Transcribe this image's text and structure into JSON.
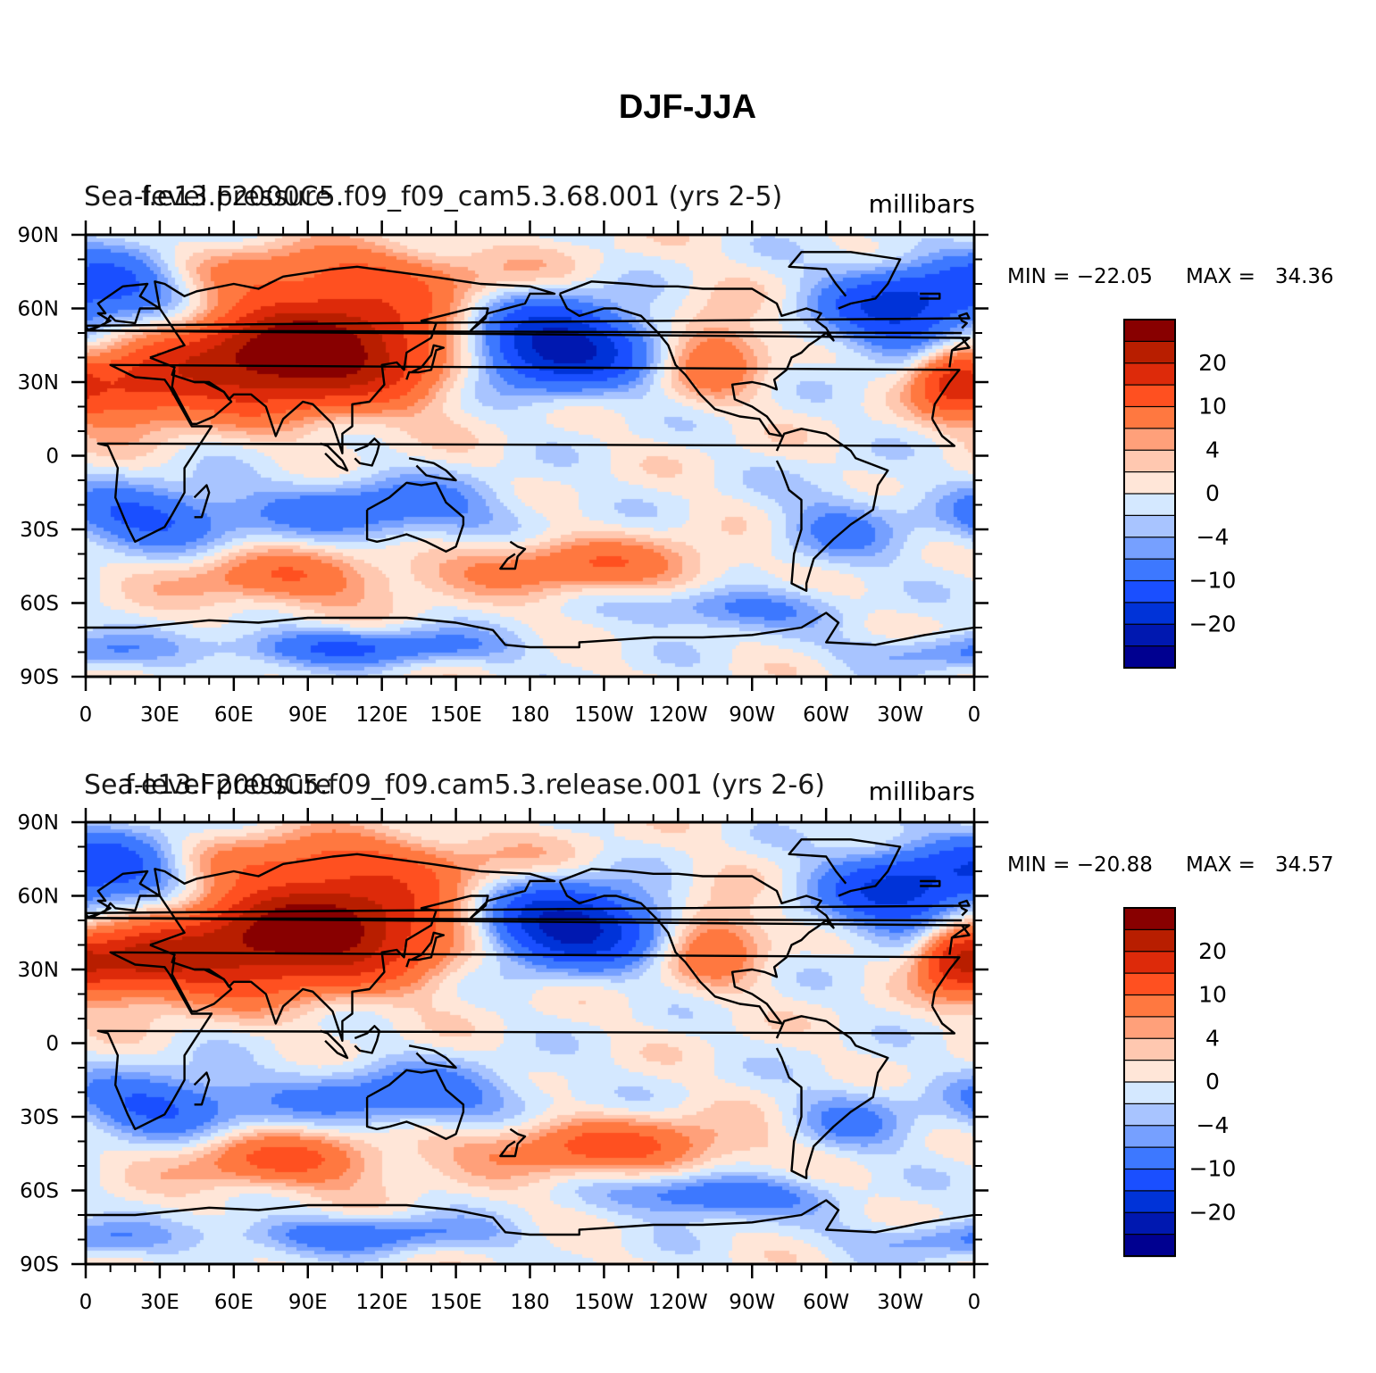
{
  "figure_title": "DJF-JJA",
  "chart_data": [
    {
      "type": "heatmap",
      "title": "f.e13.F2000C5.f09_f09_cam5.3.68.001 (yrs 2-5)",
      "variable_label": "Sea-level pressure",
      "units": "millibars",
      "xlim": [
        0,
        360
      ],
      "ylim": [
        -90,
        90
      ],
      "x_ticks": [
        "0",
        "30E",
        "60E",
        "90E",
        "120E",
        "150E",
        "180",
        "150W",
        "120W",
        "90W",
        "60W",
        "30W",
        "0"
      ],
      "y_ticks": [
        "90N",
        "60N",
        "30N",
        "0",
        "30S",
        "60S",
        "90S"
      ],
      "min_label": "MIN = −22.05",
      "max_label": "MAX =   34.36",
      "min": -22.05,
      "max": 34.36,
      "colorbar_labels": [
        "20",
        "10",
        "4",
        "0",
        "−4",
        "−10",
        "−20"
      ],
      "colorbar_levels": [
        -25,
        -20,
        -15,
        -10,
        -6,
        -4,
        -2,
        0,
        2,
        4,
        6,
        10,
        15,
        20,
        25
      ],
      "features": [
        {
          "lon": 100,
          "lat": 45,
          "amp": 26,
          "slon": 35,
          "slat": 16
        },
        {
          "lon": 60,
          "lat": 35,
          "amp": 14,
          "slon": 30,
          "slat": 12
        },
        {
          "lon": 15,
          "lat": 25,
          "amp": 12,
          "slon": 18,
          "slat": 10
        },
        {
          "lon": 350,
          "lat": 32,
          "amp": 14,
          "slon": 10,
          "slat": 9
        },
        {
          "lon": 255,
          "lat": 42,
          "amp": 10,
          "slon": 14,
          "slat": 12
        },
        {
          "lon": 100,
          "lat": 75,
          "amp": 7,
          "slon": 55,
          "slat": 8
        },
        {
          "lon": 190,
          "lat": 45,
          "amp": -24,
          "slon": 25,
          "slat": 12
        },
        {
          "lon": 330,
          "lat": 60,
          "amp": -16,
          "slon": 22,
          "slat": 12
        },
        {
          "lon": 15,
          "lat": 70,
          "amp": -12,
          "slon": 22,
          "slat": 10
        },
        {
          "lon": 25,
          "lat": -25,
          "amp": -11,
          "slon": 25,
          "slat": 9
        },
        {
          "lon": 120,
          "lat": -22,
          "amp": -9,
          "slon": 35,
          "slat": 9
        },
        {
          "lon": 305,
          "lat": -30,
          "amp": -6,
          "slon": 18,
          "slat": 12
        },
        {
          "lon": 80,
          "lat": -50,
          "amp": 9,
          "slon": 30,
          "slat": 8
        },
        {
          "lon": 200,
          "lat": -45,
          "amp": 9,
          "slon": 40,
          "slat": 8
        },
        {
          "lon": 260,
          "lat": -62,
          "amp": -8,
          "slon": 25,
          "slat": 6
        },
        {
          "lon": 110,
          "lat": -78,
          "amp": -10,
          "slon": 40,
          "slat": 5
        },
        {
          "lon": 350,
          "lat": -80,
          "amp": -6,
          "slon": 30,
          "slat": 5
        }
      ]
    },
    {
      "type": "heatmap",
      "title": "f.e13.F2000C5.f09_f09.cam5.3.release.001 (yrs 2-6)",
      "variable_label": "Sea-level pressure",
      "units": "millibars",
      "xlim": [
        0,
        360
      ],
      "ylim": [
        -90,
        90
      ],
      "x_ticks": [
        "0",
        "30E",
        "60E",
        "90E",
        "120E",
        "150E",
        "180",
        "150W",
        "120W",
        "90W",
        "60W",
        "30W",
        "0"
      ],
      "y_ticks": [
        "90N",
        "60N",
        "30N",
        "0",
        "30S",
        "60S",
        "90S"
      ],
      "min_label": "MIN = −20.88",
      "max_label": "MAX =   34.57",
      "min": -20.88,
      "max": 34.57,
      "colorbar_labels": [
        "20",
        "10",
        "4",
        "0",
        "−4",
        "−10",
        "−20"
      ],
      "colorbar_levels": [
        -25,
        -20,
        -15,
        -10,
        -6,
        -4,
        -2,
        0,
        2,
        4,
        6,
        10,
        15,
        20,
        25
      ],
      "features": [
        {
          "lon": 100,
          "lat": 48,
          "amp": 27,
          "slon": 35,
          "slat": 15
        },
        {
          "lon": 55,
          "lat": 35,
          "amp": 14,
          "slon": 30,
          "slat": 12
        },
        {
          "lon": 15,
          "lat": 32,
          "amp": 14,
          "slon": 18,
          "slat": 10
        },
        {
          "lon": 352,
          "lat": 35,
          "amp": 15,
          "slon": 10,
          "slat": 9
        },
        {
          "lon": 255,
          "lat": 42,
          "amp": 10,
          "slon": 14,
          "slat": 12
        },
        {
          "lon": 100,
          "lat": 75,
          "amp": 7,
          "slon": 55,
          "slat": 8
        },
        {
          "lon": 195,
          "lat": 48,
          "amp": -24,
          "slon": 25,
          "slat": 11
        },
        {
          "lon": 330,
          "lat": 62,
          "amp": -16,
          "slon": 22,
          "slat": 12
        },
        {
          "lon": 15,
          "lat": 72,
          "amp": -13,
          "slon": 22,
          "slat": 10
        },
        {
          "lon": 30,
          "lat": -25,
          "amp": -11,
          "slon": 25,
          "slat": 9
        },
        {
          "lon": 130,
          "lat": -22,
          "amp": -9,
          "slon": 35,
          "slat": 9
        },
        {
          "lon": 310,
          "lat": -32,
          "amp": -6,
          "slon": 18,
          "slat": 10
        },
        {
          "lon": 80,
          "lat": -48,
          "amp": 11,
          "slon": 28,
          "slat": 8
        },
        {
          "lon": 210,
          "lat": -42,
          "amp": 11,
          "slon": 40,
          "slat": 8
        },
        {
          "lon": 255,
          "lat": -62,
          "amp": -11,
          "slon": 25,
          "slat": 6
        },
        {
          "lon": 110,
          "lat": -78,
          "amp": -8,
          "slon": 40,
          "slat": 5
        },
        {
          "lon": 350,
          "lat": -80,
          "amp": -6,
          "slon": 30,
          "slat": 5
        }
      ]
    }
  ],
  "colors": {
    "palette": [
      "#000090",
      "#0018b0",
      "#0033d8",
      "#1a4fff",
      "#3d78ff",
      "#76a0ff",
      "#a8c4ff",
      "#d4e8ff",
      "#ffe6d8",
      "#ffc8b0",
      "#ffa07a",
      "#ff7840",
      "#ff5020",
      "#dd2a0a",
      "#b81e00",
      "#880000"
    ],
    "coast": "#000000",
    "axis": "#000000"
  }
}
